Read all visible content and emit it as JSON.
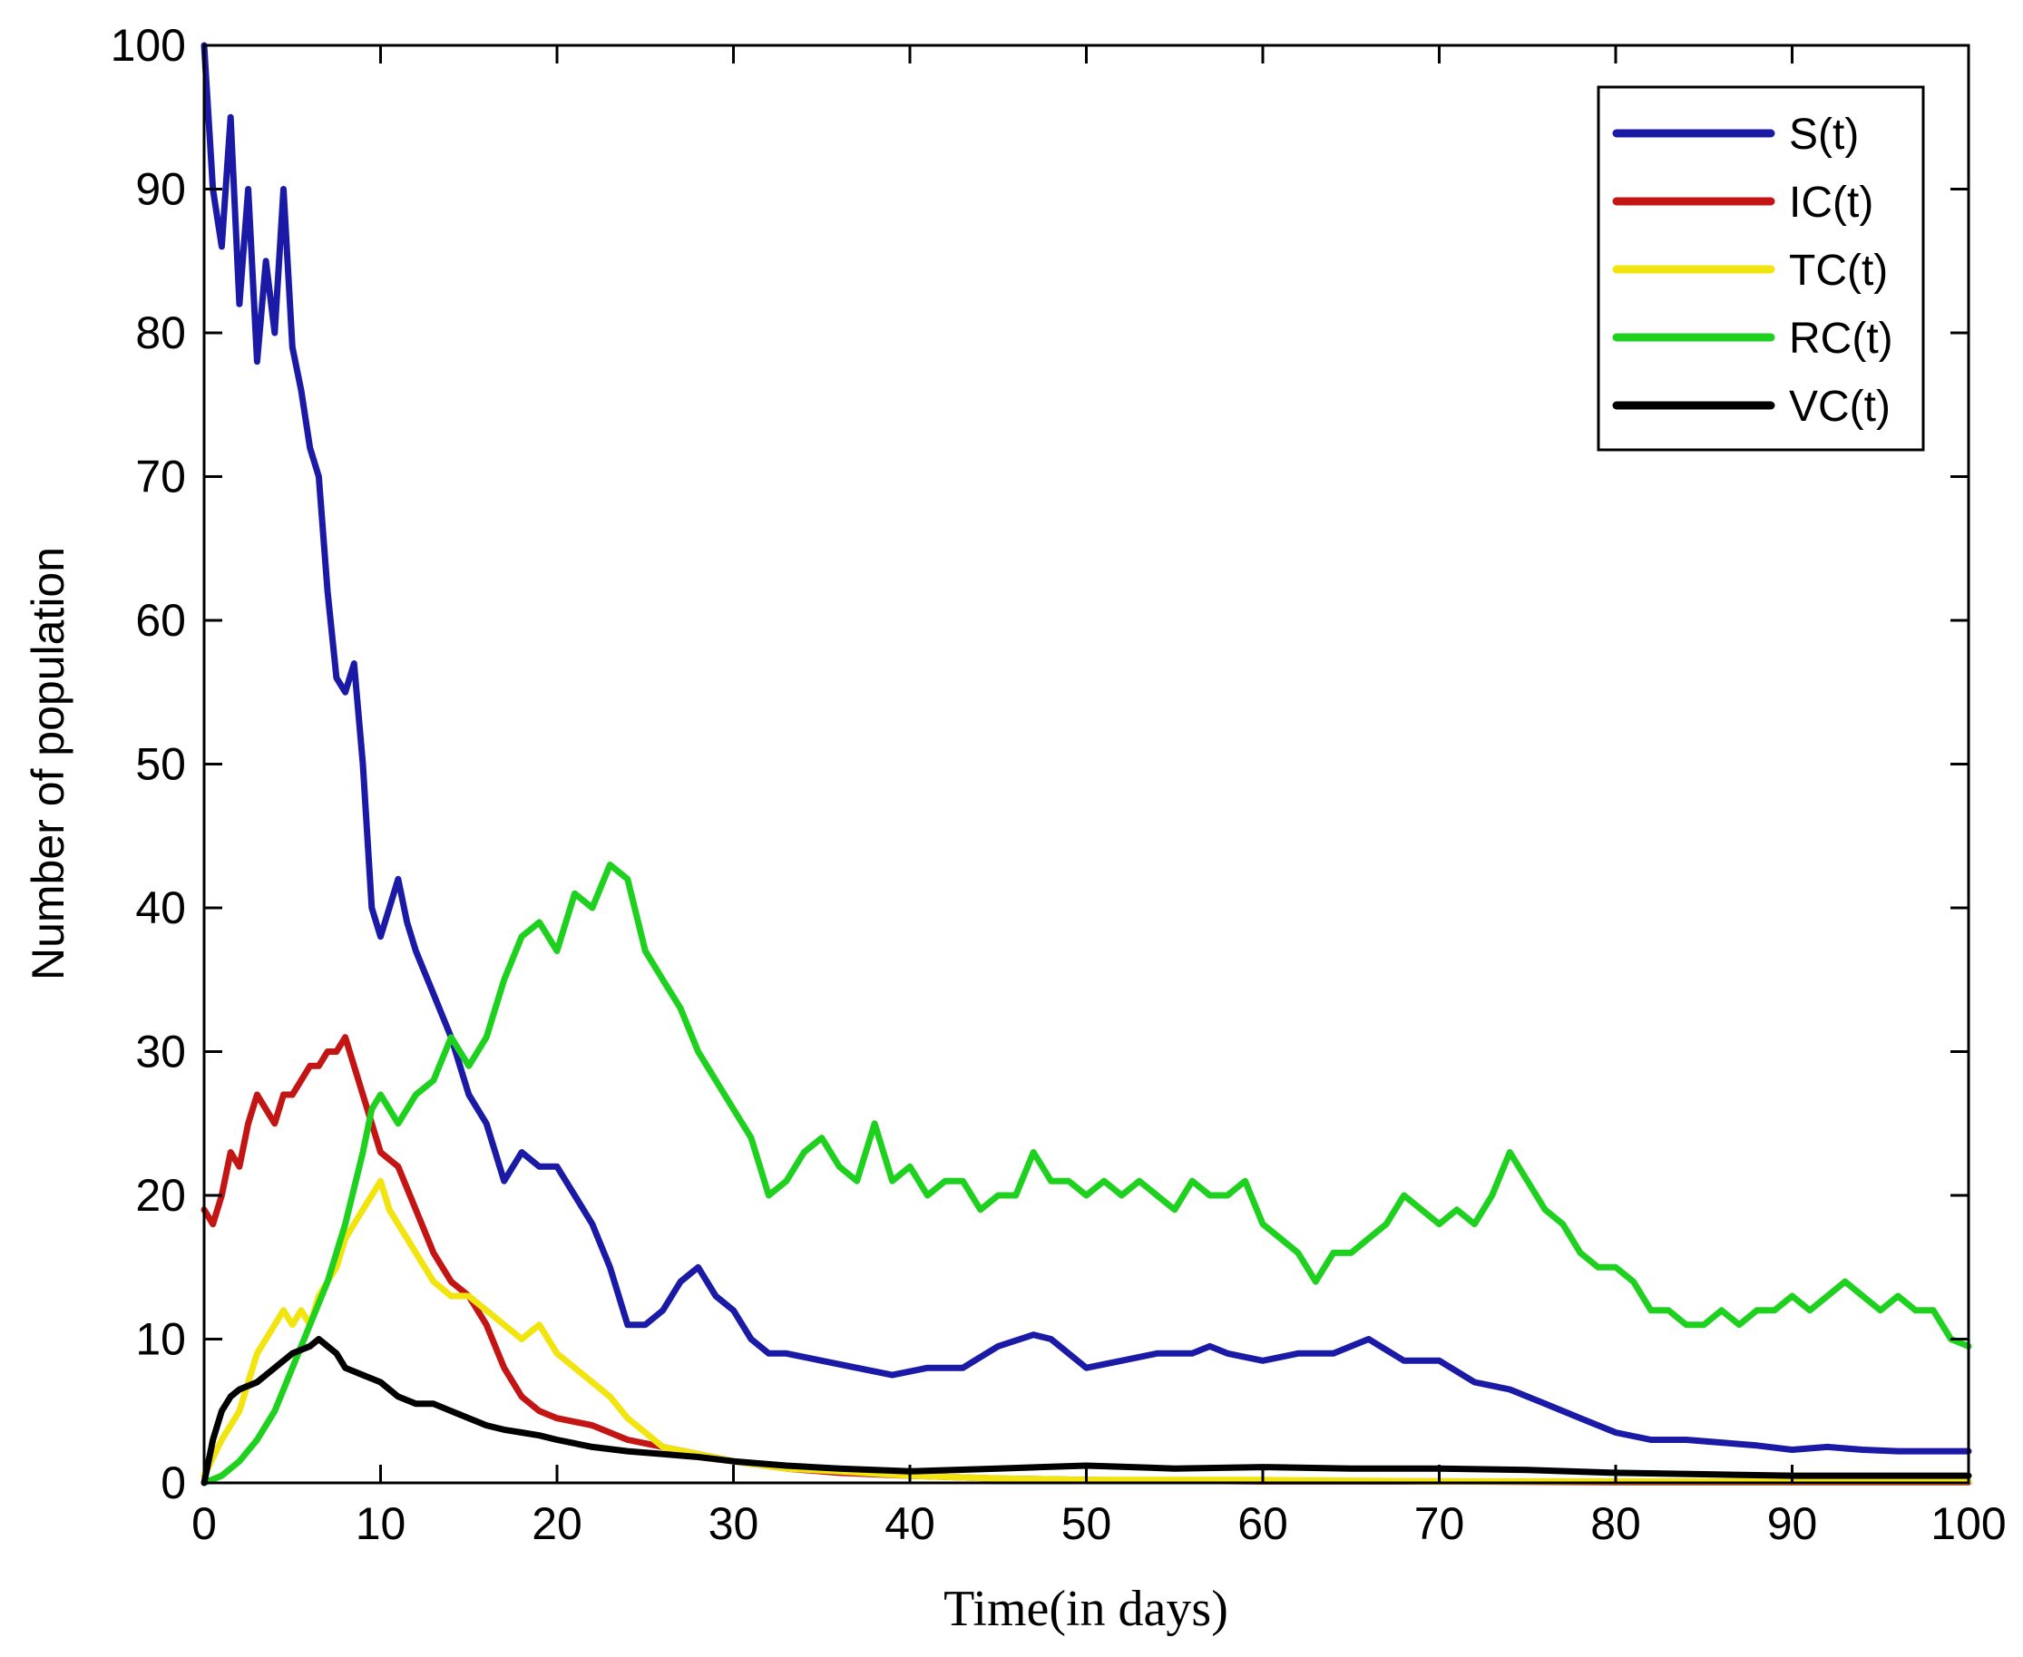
{
  "chart_data": {
    "type": "line",
    "xlabel": "Time(in days)",
    "ylabel": "Number of population",
    "xlim": [
      0,
      100
    ],
    "ylim": [
      0,
      100
    ],
    "xticks": [
      "0",
      "10",
      "20",
      "30",
      "40",
      "50",
      "60",
      "70",
      "80",
      "90",
      "100"
    ],
    "yticks": [
      "0",
      "10",
      "20",
      "30",
      "40",
      "50",
      "60",
      "70",
      "80",
      "90",
      "100"
    ],
    "grid": false,
    "legend_position": "top-right",
    "series": [
      {
        "name": "S(t)",
        "color": "#1a1aa6",
        "x": [
          0,
          0.5,
          1,
          1.5,
          2,
          2.5,
          3,
          3.5,
          4,
          4.5,
          5,
          5.5,
          6,
          6.5,
          7,
          7.5,
          8,
          8.5,
          9,
          9.5,
          10,
          10.5,
          11,
          11.5,
          12,
          13,
          14,
          15,
          16,
          17,
          18,
          19,
          20,
          21,
          22,
          23,
          24,
          25,
          26,
          27,
          28,
          29,
          30,
          31,
          32,
          33,
          35,
          37,
          39,
          41,
          43,
          45,
          47,
          48,
          50,
          52,
          54,
          56,
          57,
          58,
          60,
          62,
          64,
          66,
          68,
          70,
          72,
          74,
          76,
          78,
          80,
          82,
          84,
          86,
          88,
          90,
          92,
          94,
          96,
          98,
          100
        ],
        "y": [
          100,
          90,
          86,
          95,
          82,
          90,
          78,
          85,
          80,
          90,
          79,
          76,
          72,
          70,
          62,
          56,
          55,
          57,
          50,
          40,
          38,
          40,
          42,
          39,
          37,
          34,
          31,
          27,
          25,
          21,
          23,
          22,
          22,
          20,
          18,
          15,
          11,
          11,
          12,
          14,
          15,
          13,
          12,
          10,
          9,
          9,
          8.5,
          8,
          7.5,
          8,
          8,
          9.5,
          10.3,
          10,
          8,
          8.5,
          9,
          9,
          9.5,
          9,
          8.5,
          9,
          9,
          10,
          8.5,
          8.5,
          7,
          6.5,
          5.5,
          4.5,
          3.5,
          3,
          3,
          2.8,
          2.6,
          2.3,
          2.5,
          2.3,
          2.2,
          2.2,
          2.2
        ]
      },
      {
        "name": "IC(t)",
        "color": "#c41515",
        "x": [
          0,
          0.5,
          1,
          1.5,
          2,
          2.5,
          3,
          3.5,
          4,
          4.5,
          5,
          5.5,
          6,
          6.5,
          7,
          7.5,
          8,
          8.5,
          9,
          9.5,
          10,
          11,
          12,
          13,
          14,
          15,
          16,
          17,
          18,
          19,
          20,
          22,
          24,
          26,
          28,
          30,
          33,
          36,
          40,
          45,
          50,
          60,
          70,
          80,
          90,
          100
        ],
        "y": [
          19,
          18,
          20,
          23,
          22,
          25,
          27,
          26,
          25,
          27,
          27,
          28,
          29,
          29,
          30,
          30,
          31,
          29,
          27,
          25,
          23,
          22,
          19,
          16,
          14,
          13,
          11,
          8,
          6,
          5,
          4.5,
          4,
          3,
          2.5,
          2,
          1.5,
          1,
          0.7,
          0.5,
          0.3,
          0.2,
          0.1,
          0.1,
          0.05,
          0.05,
          0.05
        ]
      },
      {
        "name": "TC(t)",
        "color": "#f2e40f",
        "x": [
          0,
          1,
          2,
          3,
          4,
          4.5,
          5,
          5.5,
          6,
          6.5,
          7,
          7.5,
          8,
          8.5,
          9,
          9.5,
          10,
          10.5,
          11,
          11.5,
          12,
          13,
          14,
          15,
          16,
          17,
          18,
          19,
          20,
          21,
          22,
          23,
          24,
          25,
          26,
          28,
          30,
          33,
          36,
          40,
          45,
          50,
          60,
          70,
          80,
          90,
          100
        ],
        "y": [
          0.5,
          3,
          5,
          9,
          11,
          12,
          11,
          12,
          11,
          13,
          14,
          15,
          17,
          18,
          19,
          20,
          21,
          19,
          18,
          17,
          16,
          14,
          13,
          13,
          12,
          11,
          10,
          11,
          9,
          8,
          7,
          6,
          4.5,
          3.5,
          2.5,
          2,
          1.5,
          1,
          0.8,
          0.5,
          0.3,
          0.2,
          0.2,
          0.1,
          0.1,
          0.1,
          0.1
        ]
      },
      {
        "name": "RC(t)",
        "color": "#1fd11f",
        "x": [
          0,
          1,
          2,
          3,
          4,
          5,
          6,
          7,
          8,
          9,
          9.5,
          10,
          11,
          12,
          13,
          14,
          15,
          16,
          17,
          18,
          19,
          20,
          21,
          22,
          23,
          24,
          25,
          26,
          27,
          28,
          29,
          30,
          31,
          32,
          33,
          34,
          35,
          36,
          37,
          38,
          39,
          40,
          41,
          42,
          43,
          44,
          45,
          46,
          47,
          48,
          49,
          50,
          51,
          52,
          53,
          54,
          55,
          56,
          57,
          58,
          59,
          60,
          61,
          62,
          63,
          64,
          65,
          66,
          67,
          68,
          69,
          70,
          71,
          72,
          73,
          74,
          75,
          76,
          77,
          78,
          79,
          80,
          81,
          82,
          83,
          84,
          85,
          86,
          87,
          88,
          89,
          90,
          91,
          92,
          93,
          94,
          95,
          96,
          97,
          98,
          99,
          100
        ],
        "y": [
          0,
          0.5,
          1.5,
          3,
          5,
          8,
          11,
          14,
          18,
          23,
          26,
          27,
          25,
          27,
          28,
          31,
          29,
          31,
          35,
          38,
          39,
          37,
          41,
          40,
          43,
          42,
          37,
          35,
          33,
          30,
          28,
          26,
          24,
          20,
          21,
          23,
          24,
          22,
          21,
          25,
          21,
          22,
          20,
          21,
          21,
          19,
          20,
          20,
          23,
          21,
          21,
          20,
          21,
          20,
          21,
          20,
          19,
          21,
          20,
          20,
          21,
          18,
          17,
          16,
          14,
          16,
          16,
          17,
          18,
          20,
          19,
          18,
          19,
          18,
          20,
          23,
          21,
          19,
          18,
          16,
          15,
          15,
          14,
          12,
          12,
          11,
          11,
          12,
          11,
          12,
          12,
          13,
          12,
          13,
          14,
          13,
          12,
          13,
          12,
          12,
          10,
          9.5
        ]
      },
      {
        "name": "VC(t)",
        "color": "#000000",
        "x": [
          0,
          0.5,
          1,
          1.5,
          2,
          3,
          4,
          5,
          6,
          6.5,
          7,
          7.5,
          8,
          9,
          10,
          11,
          12,
          13,
          14,
          15,
          16,
          17,
          18,
          19,
          20,
          22,
          24,
          26,
          28,
          30,
          33,
          36,
          40,
          45,
          50,
          55,
          60,
          65,
          70,
          75,
          80,
          85,
          90,
          95,
          100
        ],
        "y": [
          0,
          3,
          5,
          6,
          6.5,
          7,
          8,
          9,
          9.5,
          10,
          9.5,
          9,
          8,
          7.5,
          7,
          6,
          5.5,
          5.5,
          5,
          4.5,
          4,
          3.7,
          3.5,
          3.3,
          3,
          2.5,
          2.2,
          2,
          1.8,
          1.5,
          1.2,
          1,
          0.8,
          1,
          1.2,
          1,
          1.1,
          1,
          1,
          0.9,
          0.7,
          0.6,
          0.5,
          0.5,
          0.5
        ]
      }
    ]
  }
}
